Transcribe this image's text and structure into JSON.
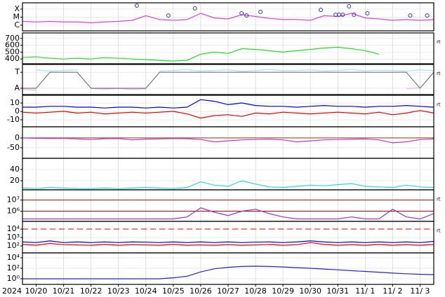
{
  "chart_data": [
    {
      "type": "line",
      "log": true,
      "xlim": [
        19.5,
        34.5
      ],
      "ylim": [
        2e-07,
        0.0006
      ],
      "yticks": [
        {
          "value": 0.0001,
          "label": "X"
        },
        {
          "value": 1e-05,
          "label": "M"
        },
        {
          "value": 1e-06,
          "label": "C"
        }
      ],
      "x": [
        19.5,
        20,
        20.5,
        21,
        21.5,
        22,
        22.5,
        23,
        23.5,
        24,
        24.5,
        25,
        25.5,
        26,
        26.5,
        27,
        27.5,
        28,
        28.5,
        29,
        29.5,
        30,
        30.5,
        31,
        31.5,
        32,
        32.5,
        33,
        33.5,
        34,
        34.5
      ],
      "series": [
        {
          "color": "#e040e0",
          "values": [
            3e-06,
            2.5e-06,
            3e-06,
            2.5e-06,
            2.5e-06,
            2e-06,
            2.5e-06,
            3e-06,
            4e-06,
            1.5e-05,
            5e-06,
            4e-06,
            5e-06,
            3e-05,
            8e-06,
            6e-06,
            2e-05,
            1.2e-05,
            7e-06,
            5e-06,
            5e-06,
            4e-06,
            1.5e-05,
            1.2e-05,
            3e-05,
            8e-06,
            6e-06,
            4e-06,
            5e-06,
            4e-06,
            5e-06
          ]
        }
      ],
      "markers": {
        "color": "#3333cc",
        "x": [
          23.67,
          24.82,
          25.79,
          27.49,
          27.67,
          28.18,
          30.38,
          30.92,
          31.05,
          31.18,
          31.41,
          31.59,
          32.08,
          33.64,
          34.26
        ],
        "values": [
          0.00027,
          1.6e-05,
          0.00012,
          3e-05,
          1.6e-05,
          4.5e-05,
          8e-05,
          2e-05,
          2e-05,
          2e-05,
          0.00022,
          2e-05,
          3e-05,
          1.6e-05,
          1.6e-05
        ]
      }
    },
    {
      "type": "line",
      "xlim": [
        19.5,
        34.5
      ],
      "ylim": [
        330,
        780
      ],
      "yticks": [
        700,
        600,
        500,
        400
      ],
      "tag": "rt",
      "x": [
        19.5,
        20,
        20.5,
        21,
        21.5,
        22,
        22.5,
        23,
        23.5,
        24,
        24.5,
        25,
        25.5,
        26,
        26.5,
        27,
        27.5,
        28,
        28.5,
        29,
        29.5,
        30,
        30.5,
        31,
        31.5,
        32,
        32.5,
        33,
        33.5,
        34,
        34.5
      ],
      "series": [
        {
          "color": "#22dd22",
          "values": [
            420,
            430,
            410,
            400,
            410,
            400,
            420,
            410,
            400,
            390,
            380,
            370,
            380,
            470,
            500,
            480,
            550,
            540,
            520,
            500,
            520,
            540,
            560,
            570,
            550,
            520,
            470,
            null,
            null,
            null,
            null
          ]
        }
      ]
    },
    {
      "type": "line",
      "xlim": [
        19.5,
        34.5
      ],
      "ylim": [
        0,
        1
      ],
      "yticks": [
        {
          "value": 0.74,
          "label": "T"
        },
        {
          "value": 0.21,
          "label": "A"
        }
      ],
      "tag": "rt",
      "x": [
        19.5,
        20,
        20.5,
        21,
        21.5,
        22,
        22.5,
        23,
        23.5,
        24,
        24.5,
        25,
        25.5,
        26,
        26.5,
        27,
        27.5,
        28,
        28.5,
        29,
        29.5,
        30,
        30.5,
        31,
        31.5,
        32,
        32.5,
        33,
        33.5,
        34,
        34.5
      ],
      "series": [
        {
          "color": "#aaddff",
          "values": [
            null,
            0.82,
            0.78,
            0.8,
            0.82,
            null,
            null,
            null,
            0.85,
            null,
            0.78,
            0.8,
            0.83,
            0.78,
            0.8,
            0.82,
            0.77,
            0.8,
            0.83,
            0.79,
            0.8,
            0.82,
            0.78,
            0.8,
            0.83,
            0.79,
            0.81,
            0.8,
            0.78,
            0.82,
            0.8
          ]
        },
        {
          "color": "#f0b0f0",
          "values": [
            0.18,
            0.15,
            null,
            null,
            null,
            0.2,
            0.18,
            0.2,
            0.17,
            0.19,
            null,
            null,
            null,
            null,
            null,
            null,
            null,
            null,
            null,
            null,
            null,
            null,
            null,
            null,
            null,
            null,
            null,
            null,
            0.2,
            0.22,
            null
          ]
        },
        {
          "color": "#777777",
          "values": [
            0.21,
            0.21,
            0.74,
            0.74,
            0.74,
            0.21,
            0.21,
            0.21,
            0.21,
            0.21,
            0.74,
            0.74,
            0.74,
            0.74,
            0.74,
            0.74,
            0.74,
            0.74,
            0.74,
            0.74,
            0.74,
            0.74,
            0.74,
            0.74,
            0.74,
            0.74,
            0.74,
            0.74,
            0.74,
            0.21,
            0.74
          ]
        }
      ]
    },
    {
      "type": "line",
      "xlim": [
        19.5,
        34.5
      ],
      "ylim": [
        -18.3,
        19.2
      ],
      "yticks": [
        10,
        0,
        -10
      ],
      "tag": "rt",
      "x": [
        19.5,
        20,
        20.5,
        21,
        21.5,
        22,
        22.5,
        23,
        23.5,
        24,
        24.5,
        25,
        25.5,
        26,
        26.5,
        27,
        27.5,
        28,
        28.5,
        29,
        29.5,
        30,
        30.5,
        31,
        31.5,
        32,
        32.5,
        33,
        33.5,
        34,
        34.5
      ],
      "series": [
        {
          "color": "#0000ee",
          "values": [
            5,
            5,
            6,
            6,
            5,
            5,
            4,
            5,
            5,
            4,
            5,
            4,
            5,
            14,
            12,
            8,
            10,
            7,
            6,
            6,
            5,
            6,
            7,
            6,
            6,
            5,
            6,
            6,
            7,
            6,
            5
          ]
        },
        {
          "color": "#ee0000",
          "values": [
            -1,
            -2,
            -1,
            0,
            -2,
            -1,
            -3,
            -2,
            -1,
            -2,
            -1,
            0,
            -3,
            -8,
            -5,
            -4,
            -6,
            -2,
            -3,
            -1,
            -2,
            -3,
            -2,
            -1,
            -2,
            -3,
            -1,
            -4,
            -2,
            1,
            -2
          ]
        }
      ]
    },
    {
      "type": "line",
      "xlim": [
        19.5,
        34.5
      ],
      "ylim": [
        -104,
        57
      ],
      "yticks": [
        0,
        -50
      ],
      "reference_lines": [
        {
          "value": 0,
          "color": "#993300"
        }
      ],
      "x": [
        19.5,
        20,
        20.5,
        21,
        21.5,
        22,
        22.5,
        23,
        23.5,
        24,
        24.5,
        25,
        25.5,
        26,
        26.5,
        27,
        27.5,
        28,
        28.5,
        29,
        29.5,
        30,
        30.5,
        31,
        31.5,
        32,
        32.5,
        33,
        33.5,
        34,
        34.5
      ],
      "series": [
        {
          "color": "#cc33cc",
          "values": [
            0,
            -2,
            -3,
            -2,
            -5,
            -8,
            -4,
            -3,
            -10,
            -6,
            -5,
            -3,
            -4,
            -8,
            -20,
            -15,
            -10,
            -8,
            -6,
            -10,
            -20,
            -15,
            -10,
            -8,
            -6,
            -5,
            -10,
            -25,
            -20,
            -8,
            -5
          ]
        }
      ]
    },
    {
      "type": "line",
      "xlim": [
        19.5,
        34.5
      ],
      "ylim": [
        3.75,
        60
      ],
      "yticks": [
        40,
        20
      ],
      "x": [
        19.5,
        20,
        20.5,
        21,
        21.5,
        22,
        22.5,
        23,
        23.5,
        24,
        24.5,
        25,
        25.5,
        26,
        26.5,
        27,
        27.5,
        28,
        28.5,
        29,
        29.5,
        30,
        30.5,
        31,
        31.5,
        32,
        32.5,
        33,
        33.5,
        34,
        34.5
      ],
      "series": [
        {
          "color": "#22dddd",
          "values": [
            7,
            6,
            8,
            7,
            6,
            6,
            7,
            6,
            7,
            8,
            7,
            6,
            8,
            18,
            12,
            10,
            20,
            14,
            9,
            8,
            10,
            12,
            11,
            13,
            15,
            10,
            9,
            8,
            12,
            9,
            8
          ]
        }
      ]
    },
    {
      "type": "line",
      "log": true,
      "xlim": [
        19.5,
        34.5
      ],
      "ylim": [
        120000.0,
        85000000.0
      ],
      "yticks": [
        {
          "value": 10000000.0,
          "label": "10⁷"
        },
        {
          "value": 1000000.0,
          "label": "10⁶"
        }
      ],
      "tag": "rt",
      "reference_lines": [
        {
          "value": 10000000.0,
          "color": "#cc0000"
        },
        {
          "value": 1000000.0,
          "color": "#cc0000"
        }
      ],
      "x": [
        19.5,
        20,
        20.5,
        21,
        21.5,
        22,
        22.5,
        23,
        23.5,
        24,
        24.5,
        25,
        25.5,
        26,
        26.5,
        27,
        27.5,
        28,
        28.5,
        29,
        29.5,
        30,
        30.5,
        31,
        31.5,
        32,
        32.5,
        33,
        33.5,
        34,
        34.5
      ],
      "series": [
        {
          "color": "#9933cc",
          "values": [
            200000.0,
            200000.0,
            200000.0,
            200000.0,
            200000.0,
            200000.0,
            200000.0,
            200000.0,
            200000.0,
            200000.0,
            200000.0,
            200000.0,
            300000.0,
            2000000.0,
            800000.0,
            400000.0,
            1000000.0,
            1500000.0,
            600000.0,
            300000.0,
            200000.0,
            200000.0,
            200000.0,
            200000.0,
            300000.0,
            200000.0,
            200000.0,
            1500000.0,
            300000.0,
            200000.0,
            600000.0
          ]
        }
      ]
    },
    {
      "type": "line",
      "log": true,
      "xlim": [
        19.5,
        34.5
      ],
      "ylim": [
        15,
        83000.0
      ],
      "yticks": [
        {
          "value": 10000.0,
          "label": "10⁴"
        },
        {
          "value": 1000.0,
          "label": "10³"
        },
        {
          "value": 100.0,
          "label": "10²"
        }
      ],
      "tag": "rt",
      "reference_lines": [
        {
          "value": 10000.0,
          "color": "#dd0000",
          "dashed": true
        }
      ],
      "x": [
        19.5,
        20,
        20.5,
        21,
        21.5,
        22,
        22.5,
        23,
        23.5,
        24,
        24.5,
        25,
        25.5,
        26,
        26.5,
        27,
        27.5,
        28,
        28.5,
        29,
        29.5,
        30,
        30.5,
        31,
        31.5,
        32,
        32.5,
        33,
        33.5,
        34,
        34.5
      ],
      "series": [
        {
          "color": "#0000ee",
          "values": [
            300,
            250,
            400,
            250,
            300,
            250,
            300,
            250,
            300,
            280,
            250,
            300,
            250,
            300,
            250,
            300,
            250,
            280,
            300,
            250,
            300,
            400,
            300,
            250,
            300,
            250,
            300,
            250,
            300,
            250,
            350
          ]
        },
        {
          "color": "#ee0000",
          "values": [
            150,
            120,
            200,
            140,
            130,
            120,
            150,
            120,
            140,
            130,
            120,
            150,
            120,
            130,
            120,
            140,
            120,
            130,
            150,
            120,
            140,
            250,
            150,
            120,
            140,
            120,
            150,
            120,
            140,
            120,
            150
          ]
        }
      ]
    },
    {
      "type": "line",
      "log": true,
      "xlim": [
        19.5,
        34.5
      ],
      "ylim": [
        0.085,
        85000.0
      ],
      "yticks": [
        {
          "value": 10000.0,
          "label": "10⁴"
        },
        {
          "value": 100.0,
          "label": "10²"
        },
        {
          "value": 1,
          "label": "10⁰"
        }
      ],
      "year_label": "2024",
      "xticks": [
        {
          "value": 20,
          "label": "10/20"
        },
        {
          "value": 21,
          "label": "10/21"
        },
        {
          "value": 22,
          "label": "10/22"
        },
        {
          "value": 23,
          "label": "10/23"
        },
        {
          "value": 24,
          "label": "10/24"
        },
        {
          "value": 25,
          "label": "10/25"
        },
        {
          "value": 26,
          "label": "10/26"
        },
        {
          "value": 27,
          "label": "10/27"
        },
        {
          "value": 28,
          "label": "10/28"
        },
        {
          "value": 29,
          "label": "10/29"
        },
        {
          "value": 30,
          "label": "10/30"
        },
        {
          "value": 31,
          "label": "10/31"
        },
        {
          "value": 32,
          "label": "11/ 1"
        },
        {
          "value": 33,
          "label": "11/ 2"
        },
        {
          "value": 34,
          "label": "11/ 3"
        }
      ],
      "x": [
        19.5,
        20,
        20.5,
        21,
        21.5,
        22,
        22.5,
        23,
        23.5,
        24,
        24.5,
        25,
        25.5,
        26,
        26.5,
        27,
        27.5,
        28,
        28.5,
        29,
        29.5,
        30,
        30.5,
        31,
        31.5,
        32,
        32.5,
        33,
        33.5,
        34,
        34.5
      ],
      "series": [
        {
          "color": "#2222dd",
          "values": [
            1,
            1,
            1,
            1,
            1,
            1,
            1,
            1,
            1,
            1,
            1,
            1.5,
            3,
            20,
            80,
            150,
            220,
            250,
            220,
            180,
            130,
            100,
            70,
            50,
            35,
            25,
            18,
            12,
            9,
            7,
            6
          ]
        }
      ]
    }
  ]
}
